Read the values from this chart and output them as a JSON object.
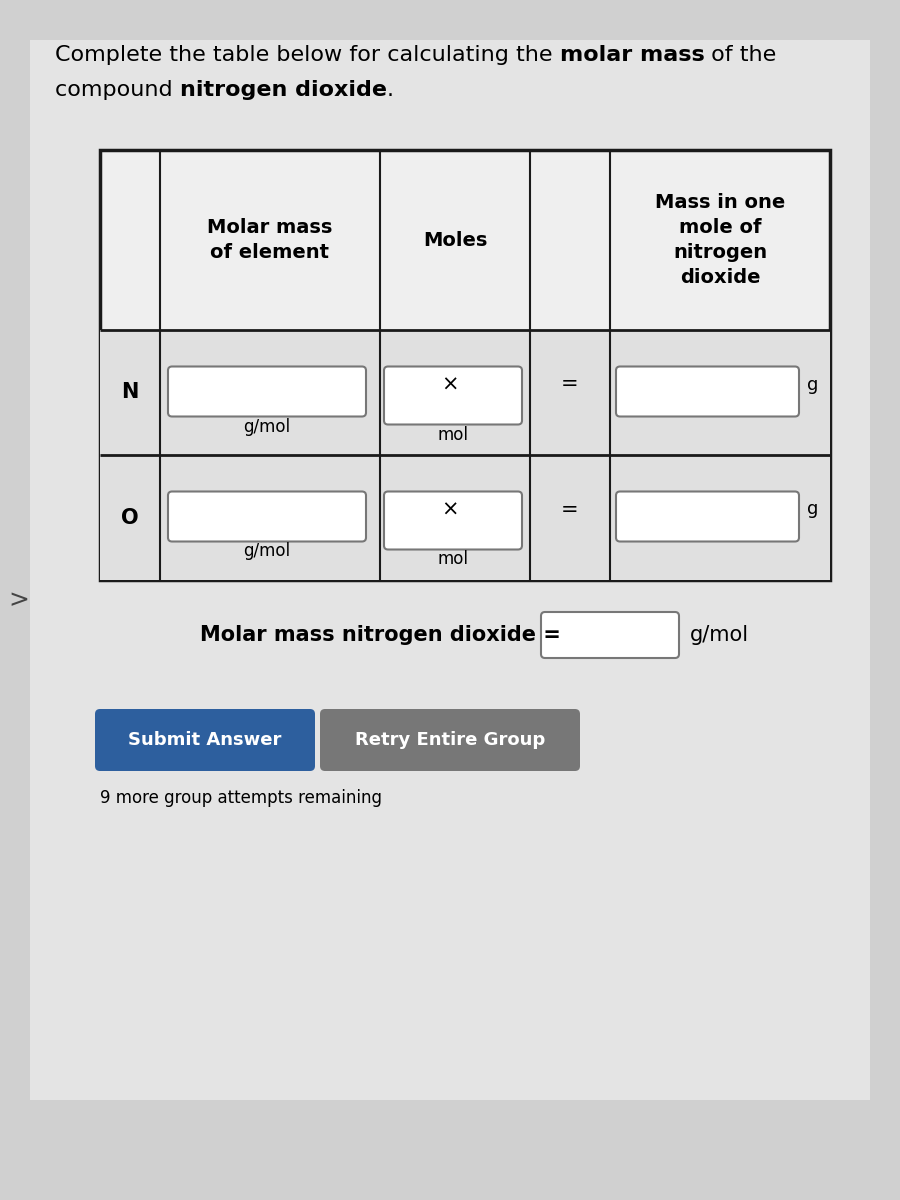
{
  "bg_color": "#d0d0d0",
  "content_bg": "#e8e8e8",
  "title_normal1": "Complete the table below for calculating the ",
  "title_bold1": "molar mass",
  "title_normal2": " of the",
  "title_normal3": "compound ",
  "title_bold2": "nitrogen dioxide",
  "title_normal4": ".",
  "table_border_color": "#1a1a1a",
  "table_header_bg": "#efefef",
  "table_row_bg": "#e0e0e0",
  "input_box_bg": "#ffffff",
  "input_box_border": "#777777",
  "header_col1": "Molar mass\nof element",
  "header_col2": "Moles",
  "header_col3": "Mass in one\nmole of\nnitrogen\ndioxide",
  "row1_element": "N",
  "row2_element": "O",
  "unit_gmol": "g/mol",
  "unit_mol": "mol",
  "unit_g": "g",
  "operator_x": "×",
  "operator_eq": "=",
  "molar_mass_label": "Molar mass nitrogen dioxide =",
  "submit_btn_text": "Submit Answer",
  "submit_btn_color": "#2d5f9e",
  "retry_btn_text": "Retry Entire Group",
  "retry_btn_color": "#777777",
  "attempts_text": "9 more group attempts remaining",
  "font_size_title": 16,
  "font_size_header": 14,
  "font_size_body": 13,
  "font_size_small": 12
}
